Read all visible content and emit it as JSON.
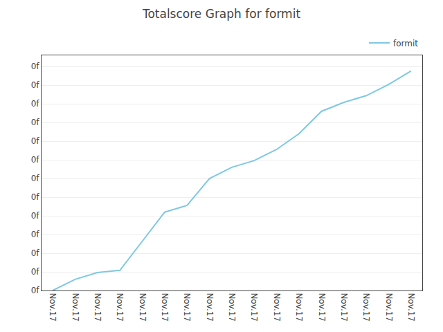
{
  "chart_data": {
    "type": "line",
    "title": "Totalscore Graph for formit",
    "categories": [
      "Nov.17",
      "Nov.17",
      "Nov.17",
      "Nov.17",
      "Nov.17",
      "Nov.17",
      "Nov.17",
      "Nov.17",
      "Nov.17",
      "Nov.17",
      "Nov.17",
      "Nov.17",
      "Nov.17",
      "Nov.17",
      "Nov.17",
      "Nov.17",
      "Nov.17"
    ],
    "series": [
      {
        "name": "formit",
        "color": "#7ec8e3",
        "values": [
          0.0,
          0.05,
          0.08,
          0.09,
          0.22,
          0.35,
          0.38,
          0.5,
          0.55,
          0.58,
          0.63,
          0.7,
          0.8,
          0.84,
          0.87,
          0.92,
          0.98
        ]
      }
    ],
    "ylim": [
      0,
      1.05
    ],
    "yticks": [
      {
        "value": 0,
        "label": "0f"
      },
      {
        "value": 0.08333333333333333,
        "label": "0f"
      },
      {
        "value": 0.16666666666666666,
        "label": "0f"
      },
      {
        "value": 0.25,
        "label": "0f"
      },
      {
        "value": 0.3333333333333333,
        "label": "0f"
      },
      {
        "value": 0.4166666666666667,
        "label": "0f"
      },
      {
        "value": 0.5,
        "label": "0f"
      },
      {
        "value": 0.5833333333333334,
        "label": "0f"
      },
      {
        "value": 0.6666666666666666,
        "label": "0f"
      },
      {
        "value": 0.75,
        "label": "0f"
      },
      {
        "value": 0.8333333333333334,
        "label": "0f"
      },
      {
        "value": 0.9166666666666666,
        "label": "0f"
      },
      {
        "value": 1.0,
        "label": "0f"
      }
    ],
    "grid": true,
    "legend": "upper right"
  }
}
